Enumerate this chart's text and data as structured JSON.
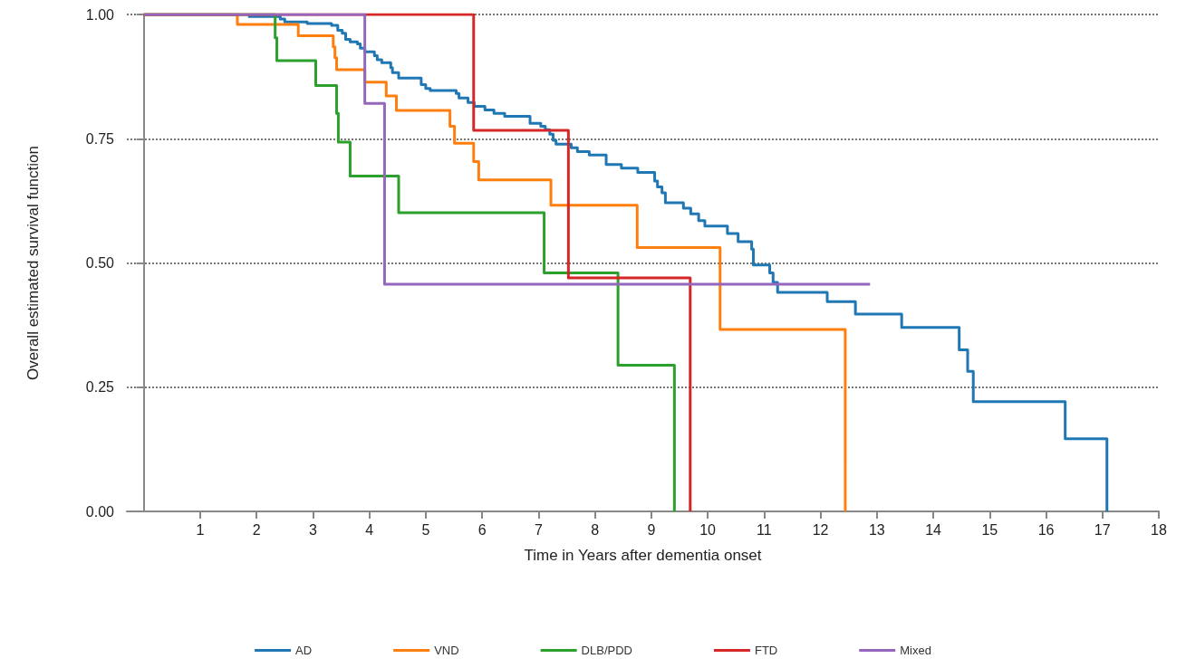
{
  "chart_data": {
    "type": "step",
    "xlabel": "Time in Years after dementia onset",
    "ylabel": "Overall estimated survival function",
    "xlim": [
      -0.3,
      18
    ],
    "xticks": [
      1,
      2,
      3,
      4,
      5,
      6,
      7,
      8,
      9,
      10,
      11,
      12,
      13,
      14,
      15,
      16,
      17,
      18
    ],
    "ylim": [
      0,
      1
    ],
    "yticks": [
      {
        "value": 0,
        "label": "0.00"
      },
      {
        "value": 0.25,
        "label": "0.25"
      },
      {
        "value": 0.5,
        "label": "0.50"
      },
      {
        "value": 0.75,
        "label": "0.75"
      },
      {
        "value": 1,
        "label": "1.00"
      }
    ],
    "grid": "y",
    "legend": "bottom",
    "marker": "none",
    "line_style": "solid",
    "series": [
      {
        "name": "AD",
        "color": "#1f77b4",
        "x": [
          1.85,
          2.42,
          2.5,
          2.9,
          3.33,
          3.44,
          3.52,
          3.58,
          3.66,
          3.79,
          3.84,
          3.92,
          4.09,
          4.14,
          4.22,
          4.38,
          4.41,
          4.52,
          4.92,
          5.0,
          5.08,
          5.54,
          5.59,
          5.75,
          5.86,
          6.05,
          6.21,
          6.4,
          6.85,
          7.04,
          7.12,
          7.2,
          7.26,
          7.31,
          7.58,
          7.69,
          7.9,
          8.2,
          8.47,
          8.76,
          9.06,
          9.11,
          9.19,
          9.25,
          9.57,
          9.7,
          9.84,
          9.95,
          10.35,
          10.54,
          10.78,
          10.81,
          11.1,
          11.16,
          11.24,
          12.12,
          12.62,
          13.44,
          14.46,
          14.61,
          14.71,
          16.34,
          17.08
        ],
        "values": [
          0.996,
          0.991,
          0.985,
          0.982,
          0.978,
          0.968,
          0.962,
          0.95,
          0.945,
          0.941,
          0.932,
          0.925,
          0.917,
          0.909,
          0.903,
          0.893,
          0.883,
          0.872,
          0.859,
          0.851,
          0.847,
          0.841,
          0.832,
          0.823,
          0.815,
          0.808,
          0.801,
          0.795,
          0.781,
          0.775,
          0.768,
          0.759,
          0.747,
          0.739,
          0.732,
          0.724,
          0.717,
          0.698,
          0.691,
          0.682,
          0.665,
          0.653,
          0.641,
          0.621,
          0.61,
          0.599,
          0.585,
          0.574,
          0.559,
          0.543,
          0.528,
          0.496,
          0.48,
          0.461,
          0.441,
          0.422,
          0.397,
          0.37,
          0.325,
          0.282,
          0.221,
          0.146,
          0
        ]
      },
      {
        "name": "VND",
        "color": "#ff7f0e",
        "x": [
          0,
          1.66,
          2.74,
          3.36,
          3.39,
          3.42,
          3.92,
          4.3,
          4.48,
          5.43,
          5.51,
          5.85,
          5.94,
          7.22,
          8.75,
          10.22,
          12.44
        ],
        "values": [
          1,
          0.98,
          0.957,
          0.935,
          0.913,
          0.889,
          0.864,
          0.836,
          0.807,
          0.775,
          0.741,
          0.704,
          0.667,
          0.616,
          0.531,
          0.366,
          0
        ]
      },
      {
        "name": "DLB/PDD",
        "color": "#2ca02c",
        "x": [
          0,
          2.33,
          2.36,
          3.05,
          3.42,
          3.45,
          3.66,
          4.52,
          7.1,
          8.41,
          9.41
        ],
        "values": [
          1,
          0.953,
          0.907,
          0.857,
          0.801,
          0.743,
          0.675,
          0.601,
          0.48,
          0.294,
          0
        ]
      },
      {
        "name": "FTD",
        "color": "#d62728",
        "x": [
          0,
          5.85,
          7.53,
          9.69
        ],
        "values": [
          1,
          0.767,
          0.47,
          0
        ]
      },
      {
        "name": "Mixed",
        "color": "#9467bd",
        "x": [
          0,
          3.92,
          4.27,
          12.88
        ],
        "values": [
          1,
          0.821,
          0.457,
          0.457
        ]
      }
    ]
  }
}
